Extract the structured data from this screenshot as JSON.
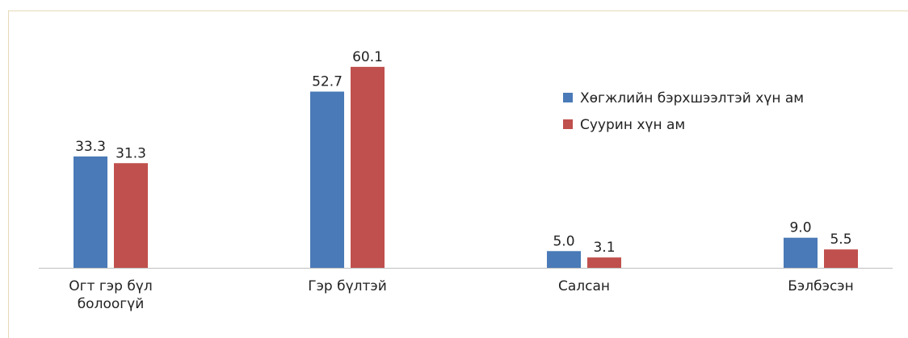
{
  "chart_data": {
    "type": "bar",
    "categories": [
      "Огт гэр бүл болоогүй",
      "Гэр бүлтэй",
      "Салсан",
      "Бэлбэсэн"
    ],
    "series": [
      {
        "name": "Хөгжлийн бэрхшээлтэй хүн ам",
        "color": "#4a7ab7",
        "values": [
          33.3,
          52.7,
          5.0,
          9.0
        ],
        "value_labels": [
          "33.3",
          "52.7",
          "5.0",
          "9.0"
        ]
      },
      {
        "name": "Суурин хүн ам",
        "color": "#c0504d",
        "values": [
          31.3,
          60.1,
          3.1,
          5.5
        ],
        "value_labels": [
          "31.3",
          "60.1",
          "3.1",
          "5.5"
        ]
      }
    ],
    "ylim": [
      0,
      62
    ],
    "grid": false,
    "legend": "upper right"
  }
}
